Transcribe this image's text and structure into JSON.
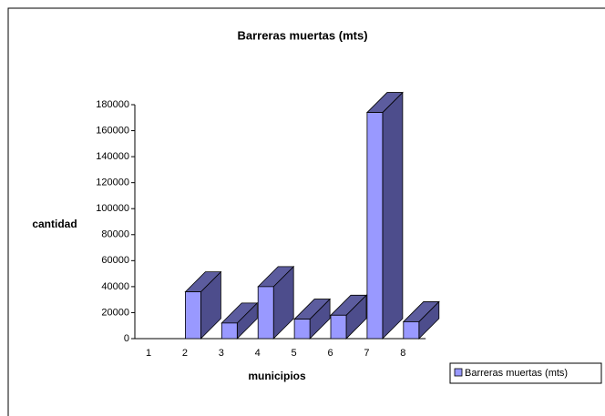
{
  "chart_data": {
    "type": "bar3d",
    "title": "Barreras muertas (mts)",
    "x_label": "municipios",
    "y_label": "cantidad",
    "categories": [
      "1",
      "2",
      "3",
      "4",
      "5",
      "6",
      "7",
      "8"
    ],
    "series": [
      {
        "name": "Barreras muertas (mts)",
        "color": "#9999ff",
        "values": [
          0,
          36000,
          12000,
          40000,
          15000,
          18000,
          174000,
          13000
        ]
      }
    ],
    "ylim": [
      0,
      180000
    ],
    "yticks": [
      0,
      20000,
      40000,
      60000,
      80000,
      100000,
      120000,
      140000,
      160000,
      180000
    ],
    "legend": "right"
  }
}
